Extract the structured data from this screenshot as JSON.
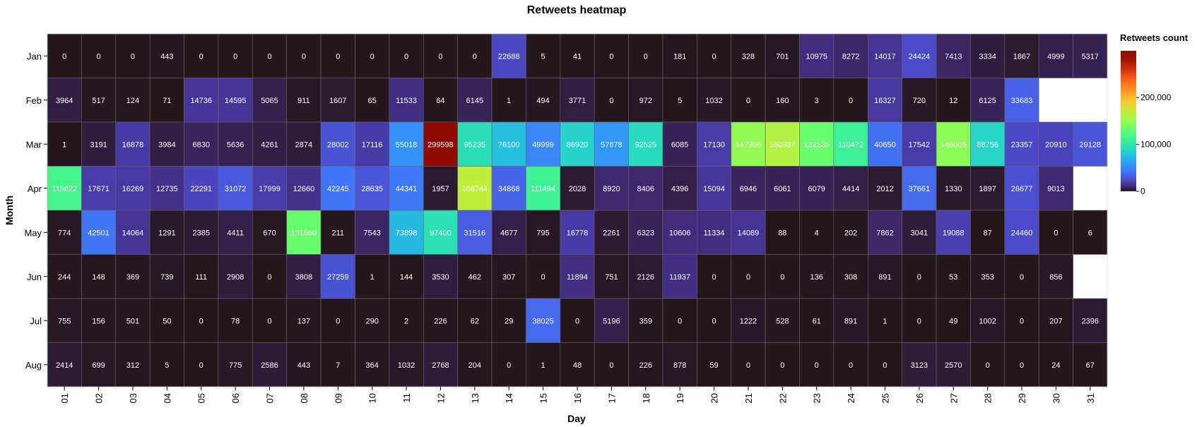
{
  "chart_data": {
    "type": "heatmap",
    "title": "Retweets heatmap",
    "xlabel": "Day",
    "ylabel": "Month",
    "legend_title": "Retweets count",
    "legend_ticks": [
      "0",
      "100,000",
      "200,000"
    ],
    "legend_tick_values": [
      0,
      100000,
      200000
    ],
    "color_domain": [
      0,
      299598
    ],
    "x": [
      "01",
      "02",
      "03",
      "04",
      "05",
      "06",
      "07",
      "08",
      "09",
      "10",
      "11",
      "12",
      "13",
      "14",
      "15",
      "16",
      "17",
      "18",
      "19",
      "20",
      "21",
      "22",
      "23",
      "24",
      "25",
      "26",
      "27",
      "28",
      "29",
      "30",
      "31"
    ],
    "y": [
      "Jan",
      "Feb",
      "Mar",
      "Apr",
      "May",
      "Jun",
      "Jul",
      "Aug"
    ],
    "values": [
      [
        0,
        0,
        0,
        443,
        0,
        0,
        0,
        0,
        0,
        0,
        0,
        0,
        0,
        22688,
        5,
        41,
        0,
        0,
        181,
        0,
        328,
        701,
        10975,
        8272,
        14017,
        24424,
        7413,
        3334,
        1867,
        4999,
        5317
      ],
      [
        3964,
        517,
        124,
        71,
        14736,
        14595,
        5065,
        911,
        1607,
        65,
        11533,
        64,
        6145,
        1,
        494,
        3771,
        0,
        972,
        5,
        1032,
        0,
        160,
        3,
        0,
        16327,
        720,
        12,
        6125,
        33683,
        null,
        null
      ],
      [
        1,
        3191,
        16878,
        3984,
        6830,
        5636,
        4261,
        2874,
        28002,
        17116,
        55018,
        299598,
        95235,
        76100,
        49999,
        86920,
        57678,
        92525,
        6085,
        17130,
        147956,
        160937,
        132135,
        110472,
        40650,
        17542,
        146005,
        88756,
        23357,
        20910,
        29128
      ],
      [
        115822,
        17671,
        16269,
        12735,
        22291,
        31072,
        17999,
        12660,
        42245,
        28635,
        44341,
        1957,
        166744,
        34868,
        111494,
        2028,
        8920,
        8406,
        4396,
        15094,
        6946,
        6061,
        6079,
        4414,
        2012,
        37661,
        1330,
        1897,
        26677,
        9013,
        null
      ],
      [
        774,
        42501,
        14064,
        1291,
        2385,
        4411,
        670,
        131560,
        211,
        7543,
        73898,
        97400,
        31516,
        4677,
        795,
        16778,
        2261,
        6323,
        10606,
        11334,
        14089,
        88,
        4,
        202,
        7862,
        3041,
        19088,
        87,
        24460,
        0,
        6
      ],
      [
        244,
        148,
        369,
        739,
        111,
        2908,
        0,
        3808,
        27259,
        1,
        144,
        3530,
        462,
        307,
        0,
        11894,
        751,
        2126,
        11937,
        0,
        0,
        0,
        136,
        308,
        891,
        0,
        53,
        353,
        0,
        856,
        null
      ],
      [
        755,
        156,
        501,
        50,
        0,
        78,
        0,
        137,
        0,
        290,
        2,
        226,
        62,
        29,
        38025,
        0,
        5196,
        359,
        0,
        0,
        1222,
        528,
        61,
        891,
        1,
        0,
        49,
        1002,
        0,
        207,
        2396
      ],
      [
        2414,
        699,
        312,
        5,
        0,
        775,
        2586,
        443,
        7,
        364,
        1032,
        2768,
        204,
        0,
        1,
        48,
        0,
        226,
        878,
        59,
        0,
        0,
        0,
        0,
        0,
        3123,
        2570,
        0,
        0,
        24,
        67
      ]
    ],
    "colormap": "turbo",
    "colors": {
      "low": "#23171b",
      "mid": "#3e9bfe",
      "high": "#900c00"
    }
  }
}
